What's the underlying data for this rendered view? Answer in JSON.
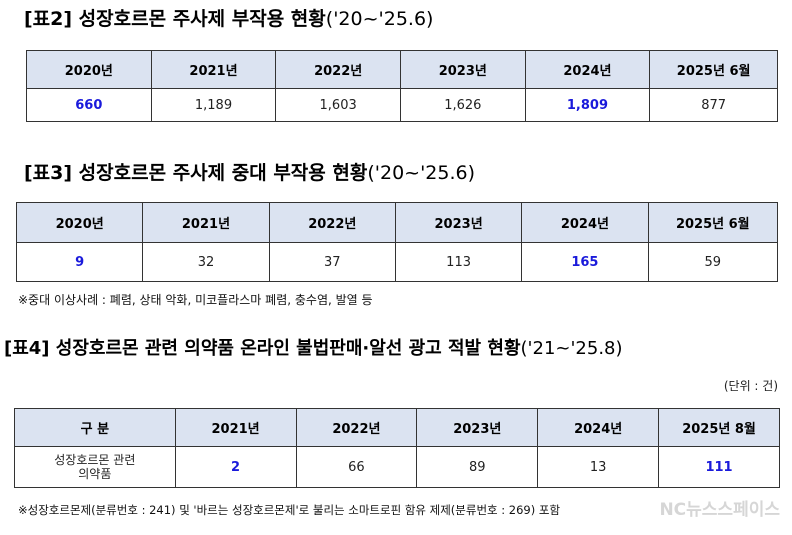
{
  "table2": {
    "title": "[표2] 성장호르몬 주사제 부작용 현황",
    "period": "('20~'25.6)",
    "headers": [
      "2020년",
      "2021년",
      "2022년",
      "2023년",
      "2024년",
      "2025년 6월"
    ],
    "values": [
      "660",
      "1,189",
      "1,603",
      "1,626",
      "1,809",
      "877"
    ],
    "highlight_color": "#1a1adb",
    "header_bg": "#dbe3f1"
  },
  "table3": {
    "title": "[표3] 성장호르몬 주사제 중대 부작용 현황",
    "period": "('20~'25.6)",
    "headers": [
      "2020년",
      "2021년",
      "2022년",
      "2023년",
      "2024년",
      "2025년 6월"
    ],
    "values": [
      "9",
      "32",
      "37",
      "113",
      "165",
      "59"
    ],
    "note": "※중대 이상사례 : 폐렴, 상태 악화, 미코플라스마 폐렴, 충수염, 발열 등"
  },
  "table4": {
    "title": "[표4] 성장호르몬 관련 의약품 온라인 불법판매·알선 광고 적발 현황",
    "period": "('21~'25.8)",
    "unit": "(단위 : 건)",
    "headers": [
      "구 분",
      "2021년",
      "2022년",
      "2023년",
      "2024년",
      "2025년 8월"
    ],
    "row_label_1": "성장호르몬 관련",
    "row_label_2": "의약품",
    "values": [
      "2",
      "66",
      "89",
      "13",
      "111"
    ],
    "note": "※성장호르몬제(분류번호 : 241) 및 '바르는 성장호르몬제'로 불리는 소마트로핀 함유 제제(분류번호 : 269) 포함"
  },
  "watermark": "NC뉴스스페이스"
}
